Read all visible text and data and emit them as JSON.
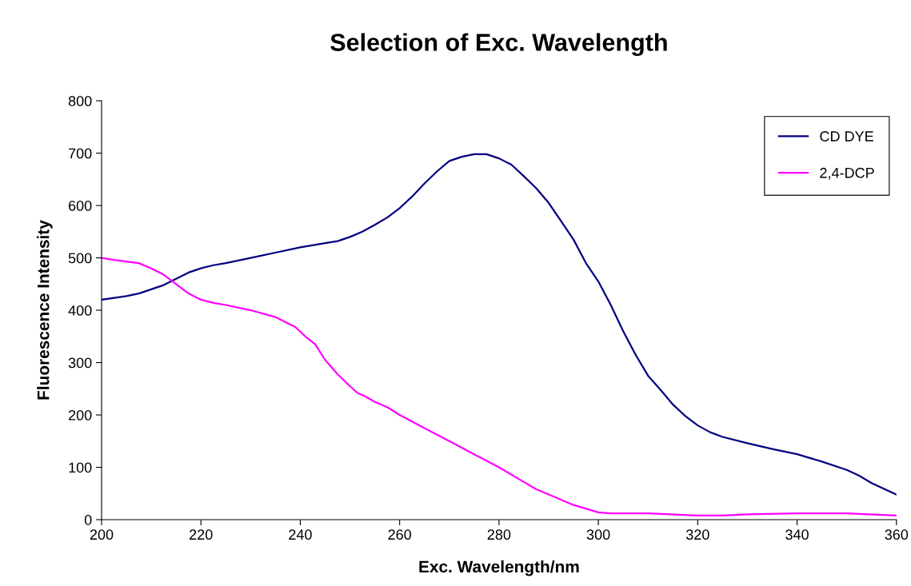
{
  "chart_data": {
    "type": "line",
    "title": "Selection of Exc. Wavelength",
    "xlabel": "Exc. Wavelength/nm",
    "ylabel": "Fluorescence Intensity",
    "xlim": [
      200,
      360
    ],
    "xticks": [
      200,
      220,
      240,
      260,
      280,
      300,
      320,
      340,
      360
    ],
    "ylim": [
      0,
      800
    ],
    "yticks": [
      0,
      100,
      200,
      300,
      400,
      500,
      600,
      700,
      800
    ],
    "grid": false,
    "legend": "top right",
    "marker": "none",
    "line_style": "solid",
    "series": [
      {
        "name": "CD DYE",
        "color": "#000080",
        "x": [
          200,
          205,
          207.5,
          210,
          212.5,
          215,
          217.5,
          220,
          222.5,
          225,
          230,
          235,
          240,
          245,
          247.5,
          250,
          252.5,
          255,
          257.5,
          260,
          262.5,
          265,
          267.5,
          270,
          272.5,
          275,
          277.5,
          280,
          282.5,
          285,
          287.5,
          290,
          292.5,
          295,
          297.5,
          300,
          302.5,
          305,
          307.5,
          310,
          312.5,
          315,
          317.5,
          320,
          322.5,
          325,
          330,
          335,
          340,
          345,
          350,
          352.5,
          355,
          360
        ],
        "values": [
          420,
          427,
          432,
          440,
          448,
          460,
          472,
          480,
          486,
          490,
          500,
          510,
          520,
          528,
          532,
          540,
          550,
          563,
          577,
          595,
          617,
          642,
          665,
          685,
          693,
          698,
          698,
          690,
          678,
          656,
          633,
          605,
          570,
          535,
          490,
          455,
          410,
          360,
          315,
          275,
          248,
          220,
          198,
          180,
          167,
          158,
          146,
          135,
          125,
          111,
          95,
          84,
          70,
          48
        ]
      },
      {
        "name": "2,4-DCP",
        "color": "#ff00ff",
        "x": [
          200,
          202.5,
          205,
          207.5,
          210,
          212.5,
          215,
          217.5,
          220,
          222.5,
          225,
          230,
          235,
          237.5,
          239,
          241,
          243,
          245,
          247.5,
          250,
          251.5,
          253,
          255,
          257.5,
          260,
          265,
          270,
          275,
          280,
          285,
          287.5,
          290,
          295,
          300,
          302.5,
          310,
          320,
          325,
          330,
          340,
          350,
          360
        ],
        "values": [
          500,
          496,
          493,
          490,
          480,
          468,
          450,
          432,
          420,
          414,
          410,
          400,
          387,
          375,
          368,
          350,
          335,
          305,
          278,
          255,
          242,
          236,
          225,
          215,
          200,
          175,
          150,
          125,
          100,
          72,
          58,
          48,
          28,
          14,
          12,
          12,
          8,
          8,
          10,
          12,
          12,
          8
        ]
      }
    ]
  }
}
